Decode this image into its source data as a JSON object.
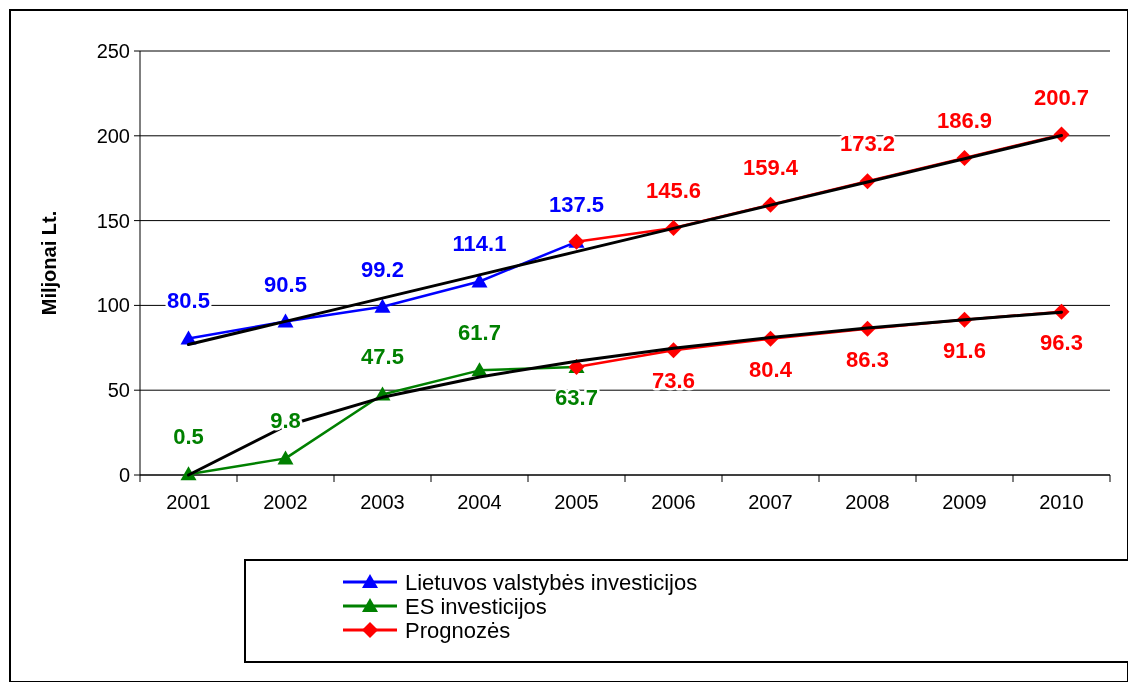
{
  "chart_data": {
    "type": "line",
    "ylabel": "Miljonai Lt.",
    "categories": [
      "2001",
      "2002",
      "2003",
      "2004",
      "2005",
      "2006",
      "2007",
      "2008",
      "2009",
      "2010"
    ],
    "ylim": [
      0,
      250
    ],
    "yticks": [
      0,
      50,
      100,
      150,
      200,
      250
    ],
    "grid": "y",
    "legend": "bottom",
    "series": [
      {
        "name": "Lietuvos valstybės investicijos",
        "color": "#0000ff",
        "marker": "triangle",
        "values": [
          80.5,
          90.5,
          99.2,
          114.1,
          137.5,
          null,
          null,
          null,
          null,
          null
        ],
        "value_labels": [
          "80.5",
          "90.5",
          "99.2",
          "114.1",
          "137.5",
          null,
          null,
          null,
          null,
          null
        ]
      },
      {
        "name": "ES investicijos",
        "color": "#008000",
        "marker": "triangle",
        "values": [
          0.5,
          9.8,
          47.5,
          61.7,
          63.7,
          null,
          null,
          null,
          null,
          null
        ],
        "value_labels": [
          "0.5",
          "9.8",
          "47.5",
          "61.7",
          "63.7",
          null,
          null,
          null,
          null,
          null
        ]
      },
      {
        "name": "Prognozės",
        "color": "#ff0000",
        "marker": "diamond",
        "values": [
          null,
          null,
          null,
          null,
          137.5,
          145.6,
          159.4,
          173.2,
          186.9,
          200.7
        ],
        "value_labels": [
          null,
          null,
          null,
          null,
          null,
          "145.6",
          "159.4",
          "173.2",
          "186.9",
          "200.7"
        ]
      },
      {
        "color": "#ff0000",
        "marker": "diamond",
        "values": [
          null,
          null,
          null,
          null,
          63.7,
          73.6,
          80.4,
          86.3,
          91.6,
          96.3
        ],
        "value_labels": [
          null,
          null,
          null,
          null,
          null,
          "73.6",
          "80.4",
          "86.3",
          "91.6",
          "96.3"
        ]
      },
      {
        "color": "#000000",
        "marker": "none",
        "values": [
          76.9,
          90.6,
          104.3,
          118,
          131.7,
          145.4,
          159.1,
          172.8,
          186.5,
          200.2
        ]
      },
      {
        "color": "#000000",
        "marker": "none",
        "values": [
          0,
          28.9,
          45.8,
          57.8,
          67.1,
          74.7,
          81.1,
          86.7,
          91.6,
          96
        ]
      }
    ]
  }
}
